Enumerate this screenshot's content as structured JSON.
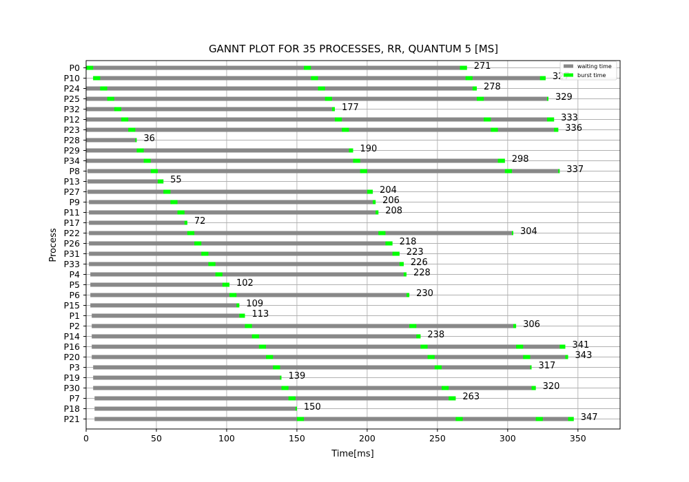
{
  "chart_data": {
    "type": "bar",
    "orientation": "horizontal-gantt",
    "title": "GANNT PLOT FOR 35 PROCESSES, RR, QUANTUM 5 [MS]",
    "xlabel": "Time[ms]",
    "ylabel": "Process",
    "xlim": [
      0,
      380
    ],
    "xticks": [
      0,
      50,
      100,
      150,
      200,
      250,
      300,
      350
    ],
    "grid": true,
    "legend": {
      "placement": "top-right",
      "entries": [
        {
          "name": "waiting time",
          "color": "#888888"
        },
        {
          "name": "burst time",
          "color": "#00ff00"
        }
      ]
    },
    "colors": {
      "waiting": "#888888",
      "burst": "#00ff00"
    },
    "processes": [
      {
        "name": "P0",
        "start": 0,
        "end": 271,
        "bursts": [
          [
            0,
            5
          ],
          [
            155,
            160
          ],
          [
            266,
            271
          ]
        ]
      },
      {
        "name": "P10",
        "start": 5,
        "end": 327,
        "bursts": [
          [
            5,
            10
          ],
          [
            160,
            165
          ],
          [
            270,
            275
          ],
          [
            323,
            327
          ]
        ]
      },
      {
        "name": "P24",
        "start": 0,
        "end": 278,
        "bursts": [
          [
            10,
            15
          ],
          [
            165,
            170
          ],
          [
            275,
            278
          ]
        ]
      },
      {
        "name": "P25",
        "start": 0,
        "end": 329,
        "bursts": [
          [
            15,
            20
          ],
          [
            170,
            175
          ],
          [
            278,
            283
          ],
          [
            328,
            329
          ]
        ]
      },
      {
        "name": "P32",
        "start": 0,
        "end": 177,
        "bursts": [
          [
            20,
            25
          ],
          [
            175,
            177
          ]
        ]
      },
      {
        "name": "P12",
        "start": 0,
        "end": 333,
        "bursts": [
          [
            25,
            30
          ],
          [
            177,
            182
          ],
          [
            283,
            288
          ],
          [
            328,
            333
          ]
        ]
      },
      {
        "name": "P23",
        "start": 0,
        "end": 336,
        "bursts": [
          [
            30,
            35
          ],
          [
            182,
            187
          ],
          [
            288,
            293
          ],
          [
            333,
            336
          ]
        ]
      },
      {
        "name": "P28",
        "start": 0,
        "end": 36,
        "bursts": [
          [
            35,
            36
          ]
        ]
      },
      {
        "name": "P29",
        "start": 0,
        "end": 190,
        "bursts": [
          [
            36,
            41
          ],
          [
            187,
            190
          ]
        ]
      },
      {
        "name": "P34",
        "start": 0,
        "end": 298,
        "bursts": [
          [
            41,
            46
          ],
          [
            190,
            195
          ],
          [
            293,
            298
          ]
        ]
      },
      {
        "name": "P8",
        "start": 1,
        "end": 337,
        "bursts": [
          [
            46,
            51
          ],
          [
            195,
            200
          ],
          [
            298,
            303
          ],
          [
            336,
            337
          ]
        ]
      },
      {
        "name": "P13",
        "start": 1,
        "end": 55,
        "bursts": [
          [
            51,
            55
          ]
        ]
      },
      {
        "name": "P27",
        "start": 1,
        "end": 204,
        "bursts": [
          [
            55,
            60
          ],
          [
            200,
            204
          ]
        ]
      },
      {
        "name": "P9",
        "start": 2,
        "end": 206,
        "bursts": [
          [
            60,
            65
          ],
          [
            204,
            206
          ]
        ]
      },
      {
        "name": "P11",
        "start": 2,
        "end": 208,
        "bursts": [
          [
            65,
            70
          ],
          [
            206,
            208
          ]
        ]
      },
      {
        "name": "P17",
        "start": 2,
        "end": 72,
        "bursts": [
          [
            70,
            72
          ]
        ]
      },
      {
        "name": "P22",
        "start": 2,
        "end": 304,
        "bursts": [
          [
            72,
            77
          ],
          [
            208,
            213
          ],
          [
            303,
            304
          ]
        ]
      },
      {
        "name": "P26",
        "start": 2,
        "end": 218,
        "bursts": [
          [
            77,
            82
          ],
          [
            213,
            218
          ]
        ]
      },
      {
        "name": "P31",
        "start": 2,
        "end": 223,
        "bursts": [
          [
            82,
            87
          ],
          [
            218,
            223
          ]
        ]
      },
      {
        "name": "P33",
        "start": 2,
        "end": 226,
        "bursts": [
          [
            87,
            92
          ],
          [
            223,
            226
          ]
        ]
      },
      {
        "name": "P4",
        "start": 3,
        "end": 228,
        "bursts": [
          [
            92,
            97
          ],
          [
            226,
            228
          ]
        ]
      },
      {
        "name": "P5",
        "start": 3,
        "end": 102,
        "bursts": [
          [
            97,
            102
          ]
        ]
      },
      {
        "name": "P6",
        "start": 3,
        "end": 230,
        "bursts": [
          [
            102,
            107
          ],
          [
            228,
            230
          ]
        ]
      },
      {
        "name": "P15",
        "start": 3,
        "end": 109,
        "bursts": [
          [
            107,
            109
          ]
        ]
      },
      {
        "name": "P1",
        "start": 4,
        "end": 113,
        "bursts": [
          [
            109,
            113
          ]
        ]
      },
      {
        "name": "P2",
        "start": 4,
        "end": 306,
        "bursts": [
          [
            113,
            118
          ],
          [
            230,
            235
          ],
          [
            304,
            306
          ]
        ]
      },
      {
        "name": "P14",
        "start": 4,
        "end": 238,
        "bursts": [
          [
            118,
            123
          ],
          [
            235,
            238
          ]
        ]
      },
      {
        "name": "P16",
        "start": 4,
        "end": 341,
        "bursts": [
          [
            123,
            128
          ],
          [
            238,
            243
          ],
          [
            306,
            311
          ],
          [
            337,
            341
          ]
        ]
      },
      {
        "name": "P20",
        "start": 4,
        "end": 343,
        "bursts": [
          [
            128,
            133
          ],
          [
            243,
            248
          ],
          [
            311,
            316
          ],
          [
            341,
            343
          ]
        ]
      },
      {
        "name": "P3",
        "start": 5,
        "end": 317,
        "bursts": [
          [
            133,
            138
          ],
          [
            248,
            253
          ],
          [
            316,
            317
          ]
        ]
      },
      {
        "name": "P19",
        "start": 5,
        "end": 139,
        "bursts": [
          [
            138,
            139
          ]
        ]
      },
      {
        "name": "P30",
        "start": 5,
        "end": 320,
        "bursts": [
          [
            139,
            144
          ],
          [
            253,
            258
          ],
          [
            317,
            320
          ]
        ]
      },
      {
        "name": "P7",
        "start": 6,
        "end": 263,
        "bursts": [
          [
            144,
            149
          ],
          [
            258,
            263
          ]
        ]
      },
      {
        "name": "P18",
        "start": 6,
        "end": 150,
        "bursts": [
          [
            149,
            150
          ]
        ]
      },
      {
        "name": "P21",
        "start": 6,
        "end": 347,
        "bursts": [
          [
            150,
            155
          ],
          [
            263,
            268
          ],
          [
            320,
            325
          ],
          [
            343,
            347
          ]
        ]
      }
    ]
  }
}
